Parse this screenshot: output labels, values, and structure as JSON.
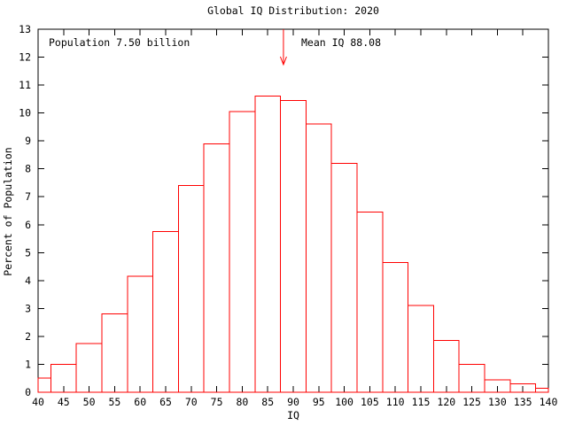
{
  "chart_data": {
    "type": "bar",
    "title": "Global IQ Distribution: 2020",
    "xlabel": "IQ",
    "ylabel": "Percent of Population",
    "xlim": [
      40,
      140
    ],
    "ylim": [
      0,
      13
    ],
    "x_tick_step": 5,
    "y_tick_step": 1,
    "bin_width": 5,
    "bin_centers": [
      40,
      45,
      50,
      55,
      60,
      65,
      70,
      75,
      80,
      85,
      90,
      95,
      100,
      105,
      110,
      115,
      120,
      125,
      130,
      135,
      140
    ],
    "values": [
      0.5,
      1.0,
      1.75,
      2.8,
      4.15,
      5.75,
      7.4,
      8.9,
      10.05,
      10.6,
      10.45,
      9.6,
      8.2,
      6.45,
      4.65,
      3.1,
      1.85,
      1.0,
      0.45,
      0.3,
      0.15
    ],
    "bar_color": "#ff0000",
    "frame_color": "#000000",
    "annotations": {
      "population": "Population 7.50 billion",
      "mean_label": "Mean IQ 88.08",
      "mean_x": 88.08,
      "arrow_color": "#ff0000"
    },
    "legend": "none",
    "grid": false
  }
}
